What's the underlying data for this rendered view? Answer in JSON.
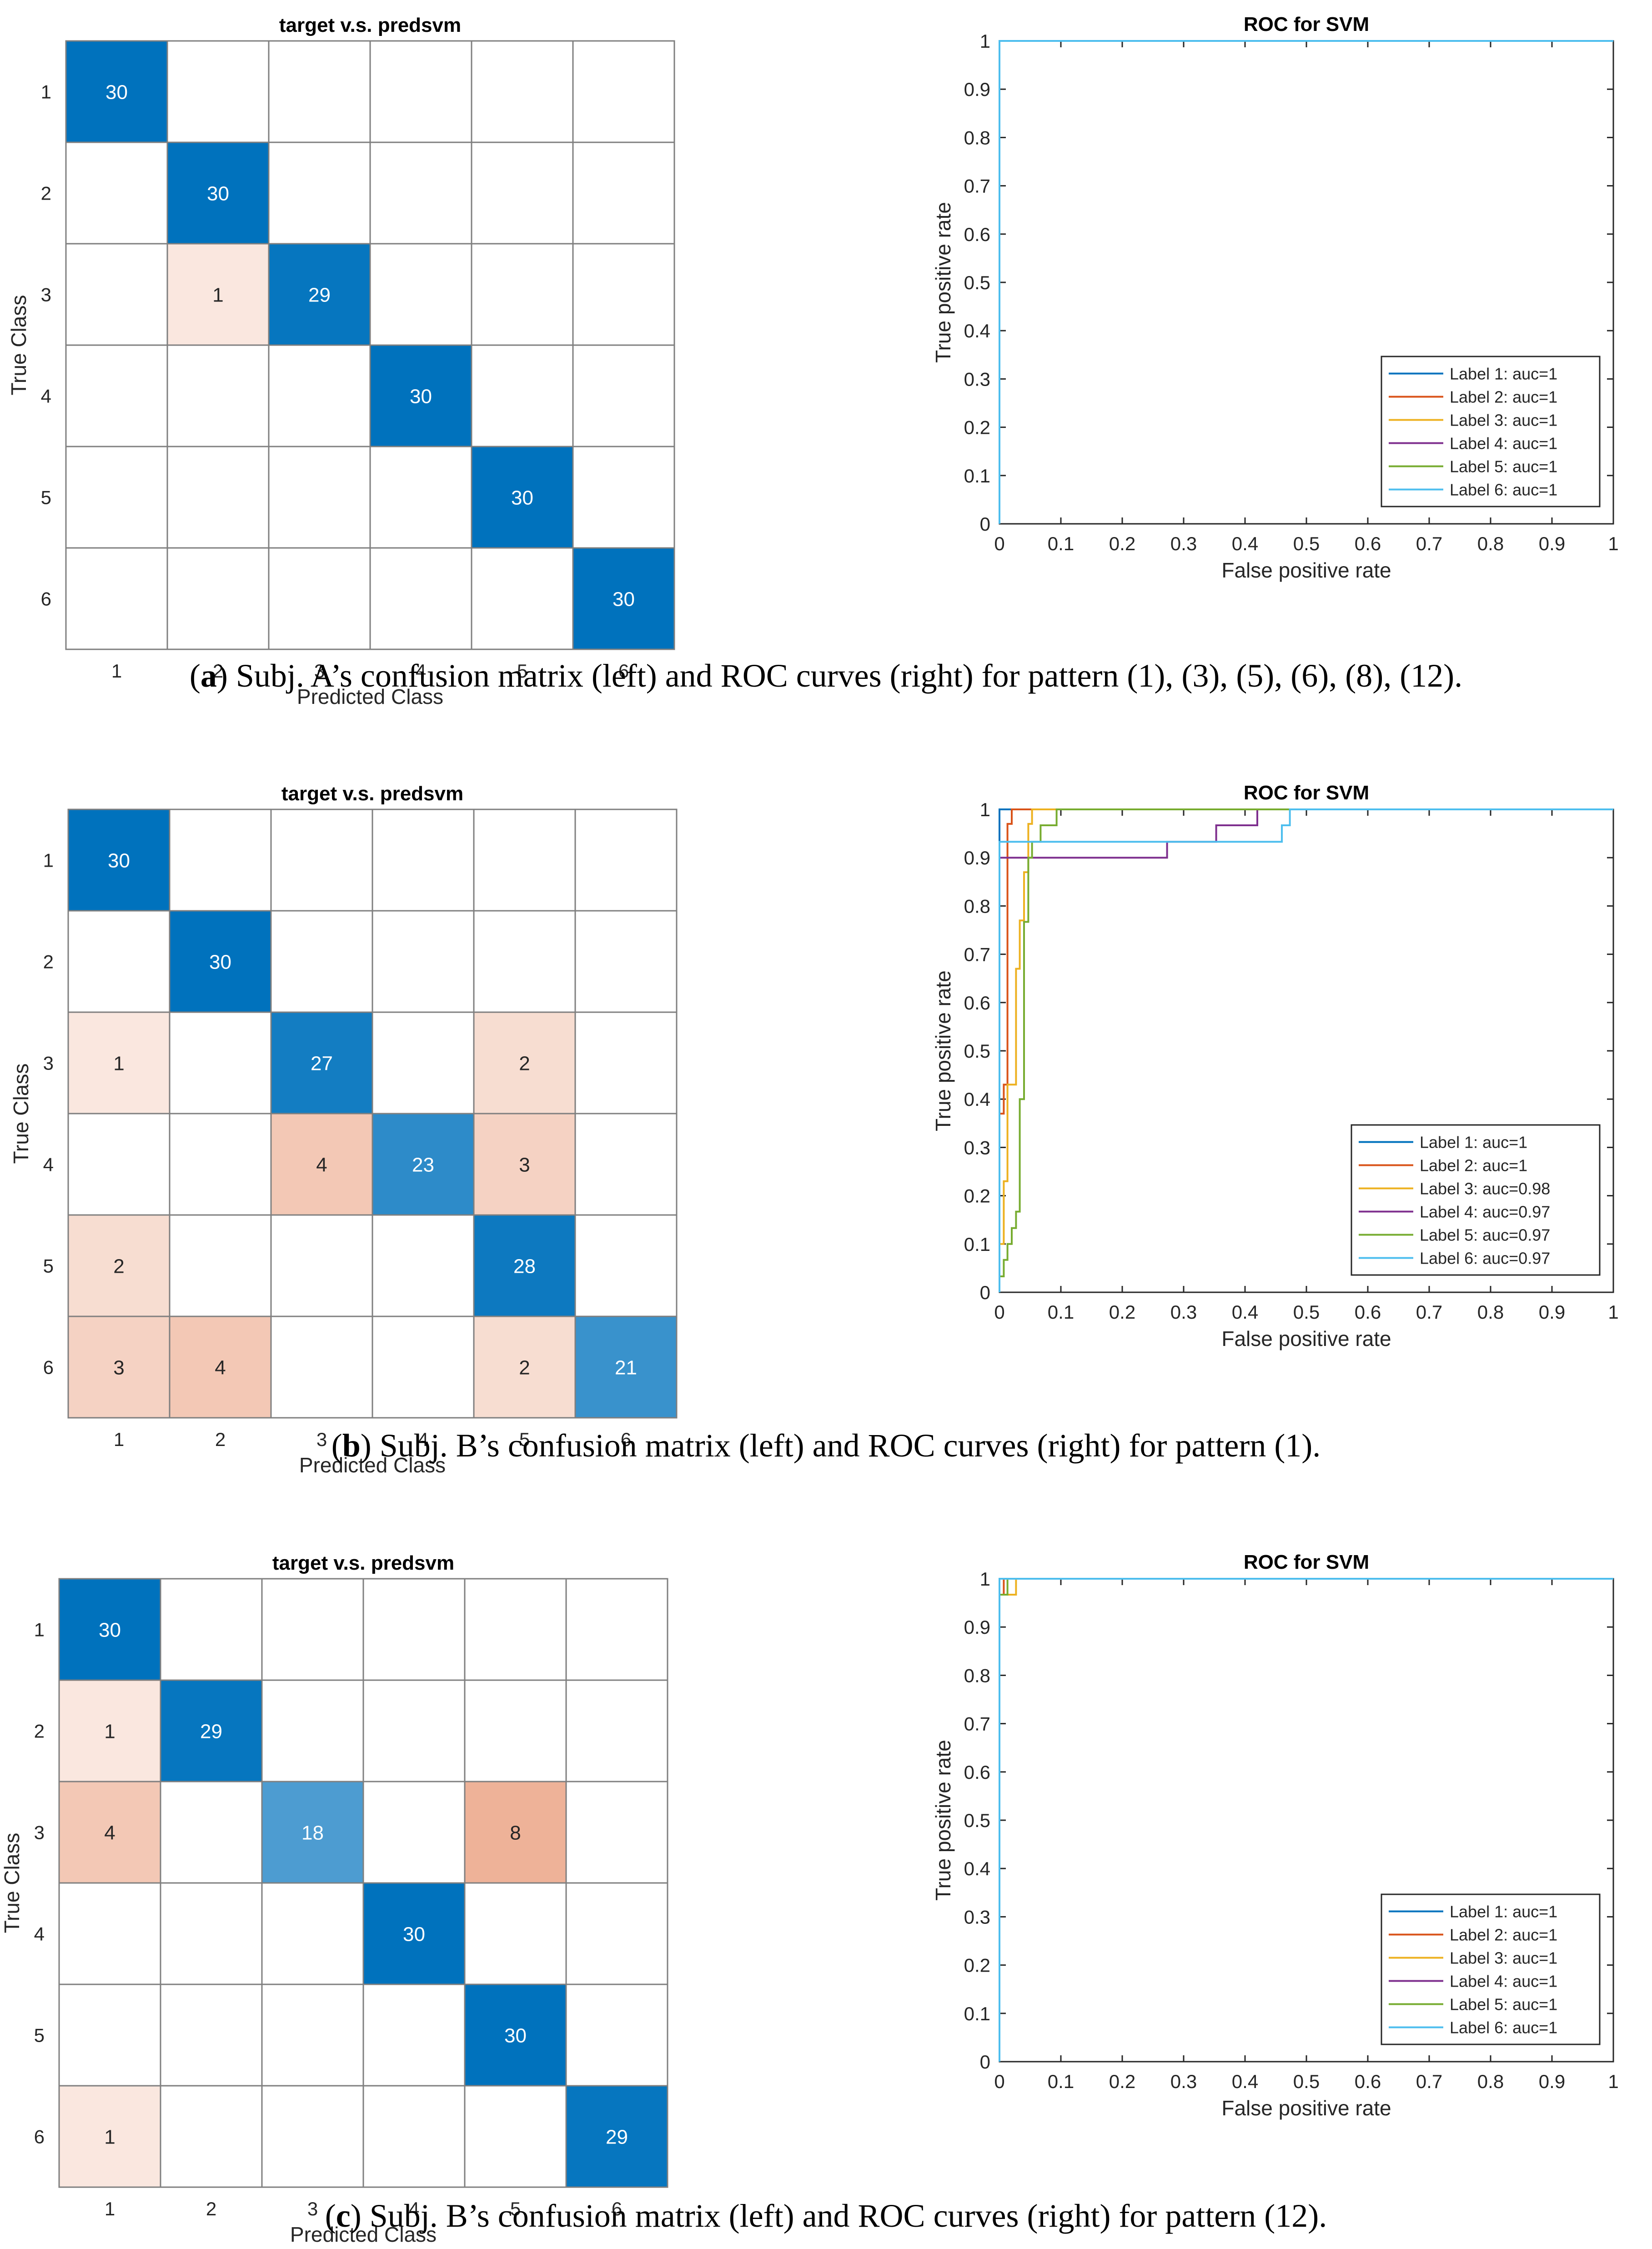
{
  "chart_data": [
    {
      "type": "heatmap",
      "panel": "a",
      "title": "target v.s. predsvm",
      "xlabel": "Predicted Class",
      "ylabel": "True Class",
      "classes": [
        "1",
        "2",
        "3",
        "4",
        "5",
        "6"
      ],
      "matrix": [
        [
          30,
          0,
          0,
          0,
          0,
          0
        ],
        [
          0,
          30,
          0,
          0,
          0,
          0
        ],
        [
          0,
          1,
          29,
          0,
          0,
          0
        ],
        [
          0,
          0,
          0,
          30,
          0,
          0
        ],
        [
          0,
          0,
          0,
          0,
          30,
          0
        ],
        [
          0,
          0,
          0,
          0,
          0,
          30
        ]
      ],
      "diagonal_color": "#0072BD",
      "off_diagonal_color": "#D95319"
    },
    {
      "type": "line",
      "panel": "a",
      "title": "ROC for SVM",
      "xlabel": "False positive rate",
      "ylabel": "True positive rate",
      "xlim": [
        0,
        1
      ],
      "ylim": [
        0,
        1
      ],
      "xticks": [
        "0",
        "0.1",
        "0.2",
        "0.3",
        "0.4",
        "0.5",
        "0.6",
        "0.7",
        "0.8",
        "0.9",
        "1"
      ],
      "yticks": [
        "0",
        "0.1",
        "0.2",
        "0.3",
        "0.4",
        "0.5",
        "0.6",
        "0.7",
        "0.8",
        "0.9",
        "1"
      ],
      "legend_position": "bottom-right",
      "series": [
        {
          "name": "Label 1: auc=1",
          "color": "#0072BD",
          "points": [
            [
              0,
              0
            ],
            [
              0,
              1
            ],
            [
              1,
              1
            ]
          ]
        },
        {
          "name": "Label 2: auc=1",
          "color": "#D95319",
          "points": [
            [
              0,
              0
            ],
            [
              0,
              1
            ],
            [
              1,
              1
            ]
          ]
        },
        {
          "name": "Label 3: auc=1",
          "color": "#EDB120",
          "points": [
            [
              0,
              0
            ],
            [
              0,
              1
            ],
            [
              1,
              1
            ]
          ]
        },
        {
          "name": "Label 4: auc=1",
          "color": "#7E2F8E",
          "points": [
            [
              0,
              0
            ],
            [
              0,
              1
            ],
            [
              1,
              1
            ]
          ]
        },
        {
          "name": "Label 5: auc=1",
          "color": "#77AC30",
          "points": [
            [
              0,
              0
            ],
            [
              0,
              1
            ],
            [
              1,
              1
            ]
          ]
        },
        {
          "name": "Label 6: auc=1",
          "color": "#4DBEEE",
          "points": [
            [
              0,
              0
            ],
            [
              0,
              1
            ],
            [
              1,
              1
            ]
          ]
        }
      ]
    },
    {
      "type": "heatmap",
      "panel": "b",
      "title": "target v.s. predsvm",
      "xlabel": "Predicted Class",
      "ylabel": "True Class",
      "classes": [
        "1",
        "2",
        "3",
        "4",
        "5",
        "6"
      ],
      "matrix": [
        [
          30,
          0,
          0,
          0,
          0,
          0
        ],
        [
          0,
          30,
          0,
          0,
          0,
          0
        ],
        [
          1,
          0,
          27,
          0,
          2,
          0
        ],
        [
          0,
          0,
          4,
          23,
          3,
          0
        ],
        [
          2,
          0,
          0,
          0,
          28,
          0
        ],
        [
          3,
          4,
          0,
          0,
          2,
          21
        ]
      ],
      "diagonal_color": "#0072BD",
      "off_diagonal_color": "#D95319"
    },
    {
      "type": "line",
      "panel": "b",
      "title": "ROC for SVM",
      "xlabel": "False positive rate",
      "ylabel": "True positive rate",
      "xlim": [
        0,
        1
      ],
      "ylim": [
        0,
        1
      ],
      "xticks": [
        "0",
        "0.1",
        "0.2",
        "0.3",
        "0.4",
        "0.5",
        "0.6",
        "0.7",
        "0.8",
        "0.9",
        "1"
      ],
      "yticks": [
        "0",
        "0.1",
        "0.2",
        "0.3",
        "0.4",
        "0.5",
        "0.6",
        "0.7",
        "0.8",
        "0.9",
        "1"
      ],
      "legend_position": "bottom-right",
      "series": [
        {
          "name": "Label 1: auc=1",
          "color": "#0072BD",
          "points": [
            [
              0,
              0
            ],
            [
              0,
              1
            ],
            [
              1,
              1
            ]
          ]
        },
        {
          "name": "Label 2: auc=1",
          "color": "#D95319",
          "points": [
            [
              0,
              0
            ],
            [
              0,
              0.37
            ],
            [
              0.007,
              0.37
            ],
            [
              0.007,
              0.43
            ],
            [
              0.013,
              0.43
            ],
            [
              0.013,
              0.97
            ],
            [
              0.02,
              0.97
            ],
            [
              0.02,
              1
            ],
            [
              1,
              1
            ]
          ]
        },
        {
          "name": "Label 3: auc=0.98",
          "color": "#EDB120",
          "points": [
            [
              0,
              0
            ],
            [
              0,
              0.1
            ],
            [
              0.007,
              0.1
            ],
            [
              0.007,
              0.23
            ],
            [
              0.013,
              0.23
            ],
            [
              0.013,
              0.43
            ],
            [
              0.027,
              0.43
            ],
            [
              0.027,
              0.67
            ],
            [
              0.033,
              0.67
            ],
            [
              0.033,
              0.77
            ],
            [
              0.04,
              0.77
            ],
            [
              0.04,
              0.87
            ],
            [
              0.047,
              0.87
            ],
            [
              0.047,
              0.97
            ],
            [
              0.053,
              0.97
            ],
            [
              0.053,
              1
            ],
            [
              1,
              1
            ]
          ]
        },
        {
          "name": "Label 4: auc=0.97",
          "color": "#7E2F8E",
          "points": [
            [
              0,
              0
            ],
            [
              0,
              0.9
            ],
            [
              0.273,
              0.9
            ],
            [
              0.273,
              0.933
            ],
            [
              0.353,
              0.933
            ],
            [
              0.353,
              0.967
            ],
            [
              0.42,
              0.967
            ],
            [
              0.42,
              1
            ],
            [
              1,
              1
            ]
          ]
        },
        {
          "name": "Label 5: auc=0.97",
          "color": "#77AC30",
          "points": [
            [
              0,
              0
            ],
            [
              0,
              0.033
            ],
            [
              0.007,
              0.033
            ],
            [
              0.007,
              0.067
            ],
            [
              0.013,
              0.067
            ],
            [
              0.013,
              0.1
            ],
            [
              0.02,
              0.1
            ],
            [
              0.02,
              0.133
            ],
            [
              0.027,
              0.133
            ],
            [
              0.027,
              0.167
            ],
            [
              0.033,
              0.167
            ],
            [
              0.033,
              0.4
            ],
            [
              0.04,
              0.4
            ],
            [
              0.04,
              0.767
            ],
            [
              0.047,
              0.767
            ],
            [
              0.047,
              0.9
            ],
            [
              0.053,
              0.9
            ],
            [
              0.053,
              0.933
            ],
            [
              0.067,
              0.933
            ],
            [
              0.067,
              0.967
            ],
            [
              0.093,
              0.967
            ],
            [
              0.093,
              1
            ],
            [
              1,
              1
            ]
          ]
        },
        {
          "name": "Label 6: auc=0.97",
          "color": "#4DBEEE",
          "points": [
            [
              0,
              0
            ],
            [
              0,
              0.933
            ],
            [
              0.46,
              0.933
            ],
            [
              0.46,
              0.967
            ],
            [
              0.473,
              0.967
            ],
            [
              0.473,
              1
            ],
            [
              1,
              1
            ]
          ]
        }
      ]
    },
    {
      "type": "heatmap",
      "panel": "c",
      "title": "target v.s. predsvm",
      "xlabel": "Predicted Class",
      "ylabel": "True Class",
      "classes": [
        "1",
        "2",
        "3",
        "4",
        "5",
        "6"
      ],
      "matrix": [
        [
          30,
          0,
          0,
          0,
          0,
          0
        ],
        [
          1,
          29,
          0,
          0,
          0,
          0
        ],
        [
          4,
          0,
          18,
          0,
          8,
          0
        ],
        [
          0,
          0,
          0,
          30,
          0,
          0
        ],
        [
          0,
          0,
          0,
          0,
          30,
          0
        ],
        [
          1,
          0,
          0,
          0,
          0,
          29
        ]
      ],
      "diagonal_color": "#0072BD",
      "off_diagonal_color": "#D95319"
    },
    {
      "type": "line",
      "panel": "c",
      "title": "ROC for SVM",
      "xlabel": "False positive rate",
      "ylabel": "True positive rate",
      "xlim": [
        0,
        1
      ],
      "ylim": [
        0,
        1
      ],
      "xticks": [
        "0",
        "0.1",
        "0.2",
        "0.3",
        "0.4",
        "0.5",
        "0.6",
        "0.7",
        "0.8",
        "0.9",
        "1"
      ],
      "yticks": [
        "0",
        "0.1",
        "0.2",
        "0.3",
        "0.4",
        "0.5",
        "0.6",
        "0.7",
        "0.8",
        "0.9",
        "1"
      ],
      "legend_position": "bottom-right",
      "series": [
        {
          "name": "Label 1: auc=1",
          "color": "#0072BD",
          "points": [
            [
              0,
              0
            ],
            [
              0,
              1
            ],
            [
              1,
              1
            ]
          ]
        },
        {
          "name": "Label 2: auc=1",
          "color": "#D95319",
          "points": [
            [
              0,
              0
            ],
            [
              0,
              0.967
            ],
            [
              0.007,
              0.967
            ],
            [
              0.007,
              1
            ],
            [
              1,
              1
            ]
          ]
        },
        {
          "name": "Label 3: auc=1",
          "color": "#EDB120",
          "points": [
            [
              0,
              0
            ],
            [
              0,
              0.967
            ],
            [
              0.027,
              0.967
            ],
            [
              0.027,
              1
            ],
            [
              1,
              1
            ]
          ]
        },
        {
          "name": "Label 4: auc=1",
          "color": "#7E2F8E",
          "points": [
            [
              0,
              0
            ],
            [
              0,
              1
            ],
            [
              1,
              1
            ]
          ]
        },
        {
          "name": "Label 5: auc=1",
          "color": "#77AC30",
          "points": [
            [
              0,
              0
            ],
            [
              0,
              0.967
            ],
            [
              0.013,
              0.967
            ],
            [
              0.013,
              1
            ],
            [
              1,
              1
            ]
          ]
        },
        {
          "name": "Label 6: auc=1",
          "color": "#4DBEEE",
          "points": [
            [
              0,
              0
            ],
            [
              0,
              1
            ],
            [
              1,
              1
            ]
          ]
        }
      ]
    }
  ],
  "captions": [
    {
      "letter": "a",
      "text": " Subj. A’s confusion matrix (left) and ROC curves (right) for pattern (1), (3), (5), (6), (8), (12)."
    },
    {
      "letter": "b",
      "text": " Subj. B’s confusion matrix (left) and ROC curves (right) for pattern (1)."
    },
    {
      "letter": "c",
      "text": " Subj. B’s confusion matrix (left) and ROC curves (right) for pattern (12)."
    }
  ]
}
